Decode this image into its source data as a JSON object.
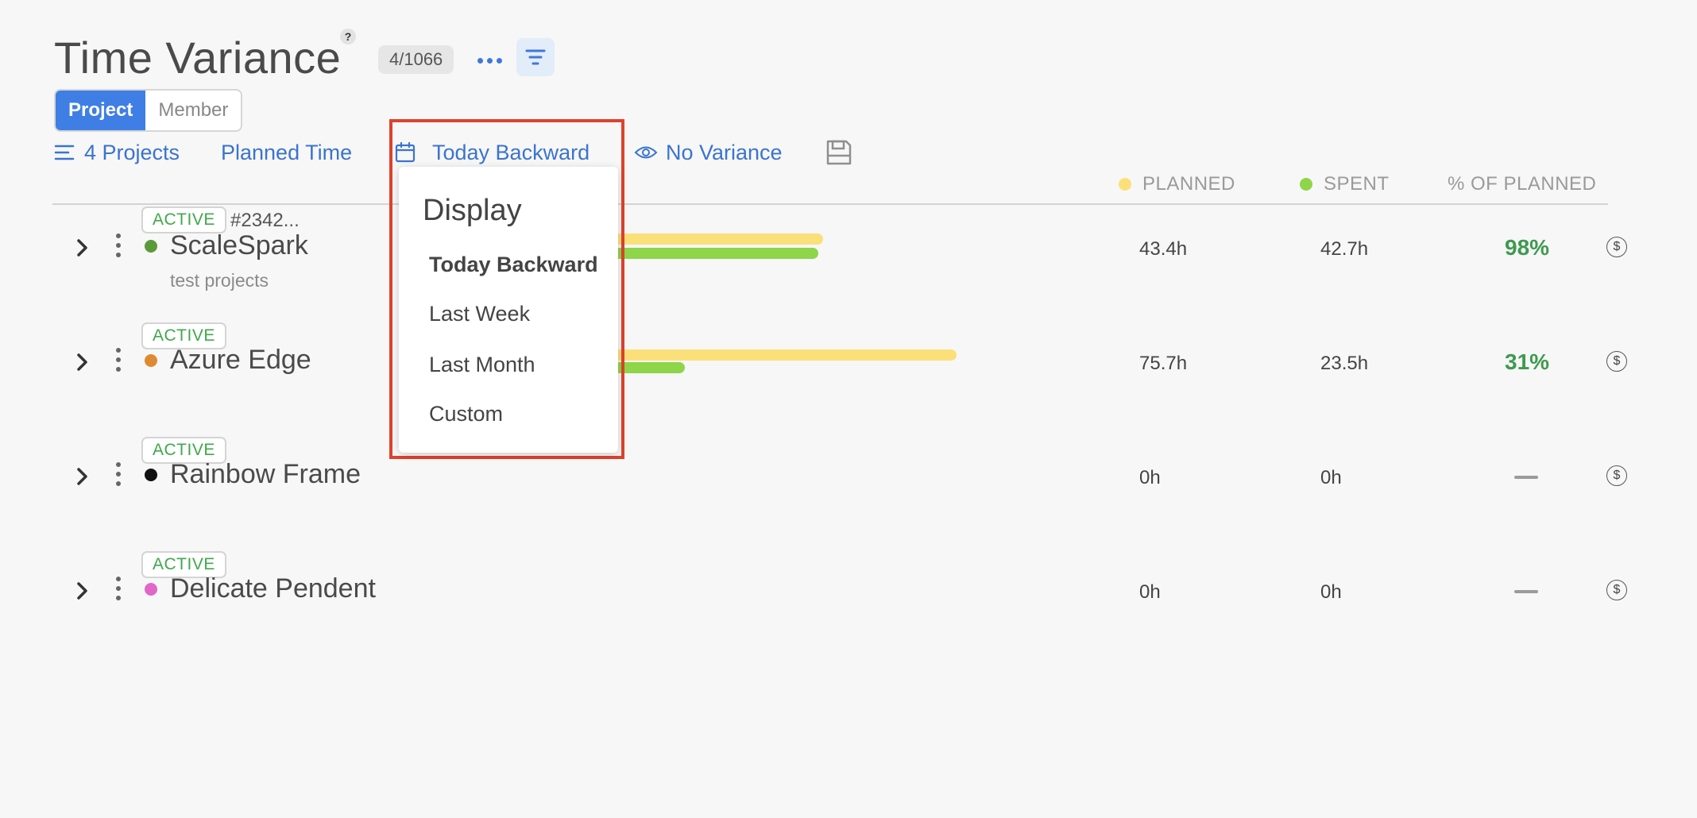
{
  "header": {
    "title": "Time Variance",
    "help_glyph": "?",
    "count": "4/1066"
  },
  "view_toggle": {
    "options": [
      "Project",
      "Member"
    ],
    "selected": "Project"
  },
  "toolbar": {
    "projects_label": "4 Projects",
    "planned_label": "Planned Time",
    "date_label": "Today Backward",
    "variance_label": "No Variance"
  },
  "columns": {
    "planned": "PLANNED",
    "spent": "SPENT",
    "percent": "% OF PLANNED"
  },
  "colors": {
    "planned": "#fbe07a",
    "spent": "#8ed54a",
    "accent": "#3f7ee4",
    "highlight_border": "#e0412c"
  },
  "projects": [
    {
      "status": "ACTIVE",
      "id_text": "#2342...",
      "name": "ScaleSpark",
      "subtitle": "test projects",
      "dot_color": "#5a9a3a",
      "planned": "43.4h",
      "spent": "42.7h",
      "percent": "98%",
      "currency": "$",
      "planned_hours": 43.4,
      "spent_hours": 42.7
    },
    {
      "status": "ACTIVE",
      "id_text": "",
      "name": "Azure Edge",
      "subtitle": "",
      "dot_color": "#e08a30",
      "planned": "75.7h",
      "spent": "23.5h",
      "percent": "31%",
      "currency": "$",
      "planned_hours": 75.7,
      "spent_hours": 23.5
    },
    {
      "status": "ACTIVE",
      "id_text": "",
      "name": "Rainbow Frame",
      "subtitle": "",
      "dot_color": "#111111",
      "planned": "0h",
      "spent": "0h",
      "percent": "",
      "currency": "$",
      "planned_hours": 0,
      "spent_hours": 0
    },
    {
      "status": "ACTIVE",
      "id_text": "",
      "name": "Delicate Pendent",
      "subtitle": "",
      "dot_color": "#e066c8",
      "planned": "0h",
      "spent": "0h",
      "percent": "",
      "currency": "$",
      "planned_hours": 0,
      "spent_hours": 0
    }
  ],
  "dropdown": {
    "title": "Display",
    "options": [
      "Today Backward",
      "Last Week",
      "Last Month",
      "Custom"
    ],
    "selected": "Today Backward"
  },
  "icons": [
    "help-icon",
    "more-dots-icon",
    "filter-icon",
    "list-icon",
    "calendar-icon",
    "eye-icon",
    "save-icon",
    "chevron-right-icon",
    "kebab-menu-icon",
    "dollar-icon"
  ]
}
